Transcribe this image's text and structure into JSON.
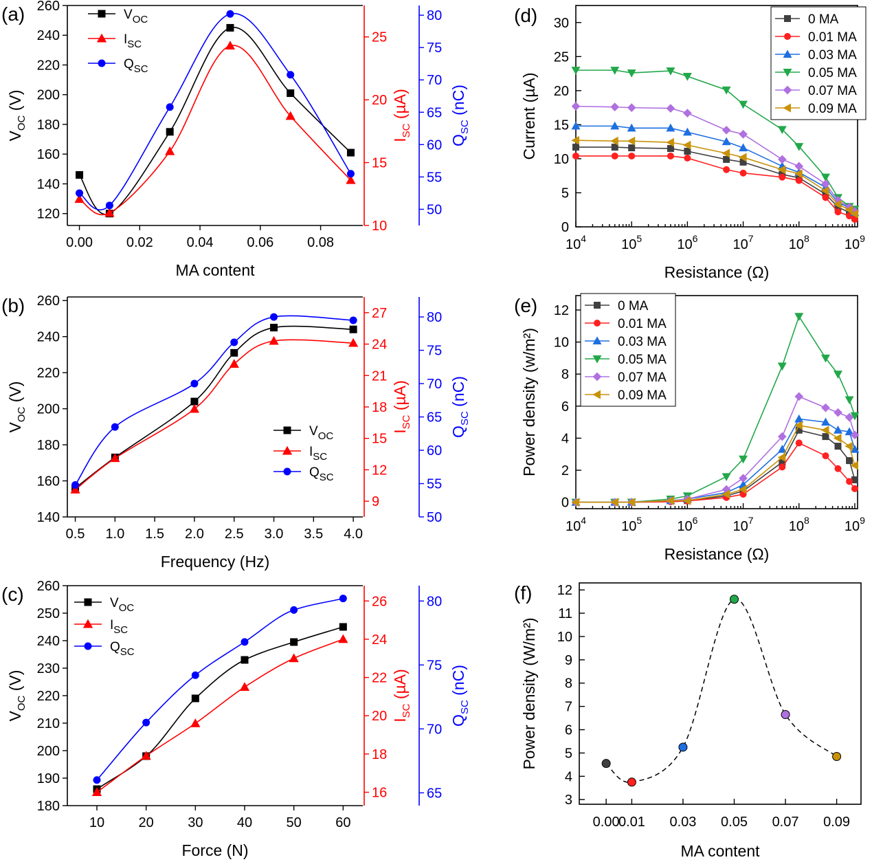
{
  "colors": {
    "voc": "#000000",
    "isc": "#ff0000",
    "qsc": "#0000ff",
    "ma0": "#404040",
    "ma001": "#ff2020",
    "ma003": "#1e6fe0",
    "ma005": "#22a84a",
    "ma007": "#b070e0",
    "ma009": "#c8920a"
  },
  "chart_data": [
    {
      "id": "a",
      "label": "(a)",
      "type": "line",
      "xlabel": "MA content",
      "x": [
        0.0,
        0.01,
        0.03,
        0.05,
        0.07,
        0.09
      ],
      "xticks": [
        0.0,
        0.02,
        0.04,
        0.06,
        0.08
      ],
      "xtick_labels": [
        "0.00",
        "0.02",
        "0.04",
        "0.06",
        "0.08"
      ],
      "xlim": [
        -0.004,
        0.094
      ],
      "axes": [
        {
          "label_main": "V",
          "label_sub": "OC",
          "label_tail": " (V)",
          "lim": [
            112,
            260
          ],
          "ticks": [
            120,
            140,
            160,
            180,
            200,
            220,
            240,
            260
          ],
          "tick_labels": [
            "120",
            "140",
            "160",
            "180",
            "200",
            "220",
            "240",
            "260"
          ]
        },
        {
          "label_main": "I",
          "label_sub": "SC",
          "label_tail": " (µA)",
          "lim": [
            10,
            27.5
          ],
          "ticks": [
            10,
            15,
            20,
            25
          ],
          "tick_labels": [
            "10",
            "15",
            "20",
            "25"
          ]
        },
        {
          "label_main": "Q",
          "label_sub": "SC",
          "label_tail": " (nC)",
          "lim": [
            47.5,
            81.5
          ],
          "ticks": [
            50,
            55,
            60,
            65,
            70,
            75,
            80
          ],
          "tick_labels": [
            "50",
            "55",
            "60",
            "65",
            "70",
            "75",
            "80"
          ]
        }
      ],
      "series": [
        {
          "name": "V",
          "sub": "OC",
          "axis": 0,
          "marker": "square",
          "color_key": "voc",
          "values": [
            146,
            120,
            175,
            245,
            201,
            161
          ]
        },
        {
          "name": "I",
          "sub": "SC",
          "axis": 1,
          "marker": "triangle",
          "color_key": "isc",
          "values": [
            12.1,
            11.0,
            15.9,
            24.3,
            18.7,
            13.6
          ]
        },
        {
          "name": "Q",
          "sub": "SC",
          "axis": 2,
          "marker": "circle",
          "color_key": "qsc",
          "values": [
            52.5,
            50.6,
            65.8,
            80.2,
            70.8,
            55.5
          ]
        }
      ],
      "legend": "top-left"
    },
    {
      "id": "b",
      "label": "(b)",
      "type": "line",
      "xlabel": "Frequency (Hz)",
      "x": [
        0.5,
        1.0,
        2.0,
        2.5,
        3.0,
        4.0
      ],
      "xticks": [
        0.5,
        1.0,
        1.5,
        2.0,
        2.5,
        3.0,
        3.5,
        4.0
      ],
      "xtick_labels": [
        "0.5",
        "1.0",
        "1.5",
        "2.0",
        "2.5",
        "3.0",
        "3.5",
        "4.0"
      ],
      "xlim": [
        0.4,
        4.12
      ],
      "axes": [
        {
          "label_main": "V",
          "label_sub": "OC",
          "label_tail": " (V)",
          "lim": [
            140,
            262
          ],
          "ticks": [
            140,
            160,
            180,
            200,
            220,
            240,
            260
          ],
          "tick_labels": [
            "140",
            "160",
            "180",
            "200",
            "220",
            "240",
            "260"
          ]
        },
        {
          "label_main": "I",
          "label_sub": "SC",
          "label_tail": " (µA)",
          "lim": [
            7.5,
            28.5
          ],
          "ticks": [
            9,
            12,
            15,
            18,
            21,
            24,
            27
          ],
          "tick_labels": [
            "9",
            "12",
            "15",
            "18",
            "21",
            "24",
            "27"
          ]
        },
        {
          "label_main": "Q",
          "label_sub": "SC",
          "label_tail": " (nC)",
          "lim": [
            50,
            83
          ],
          "ticks": [
            50,
            55,
            60,
            65,
            70,
            75,
            80
          ],
          "tick_labels": [
            "50",
            "55",
            "60",
            "65",
            "70",
            "75",
            "80"
          ]
        }
      ],
      "series": [
        {
          "name": "V",
          "sub": "OC",
          "axis": 0,
          "marker": "square",
          "color_key": "voc",
          "values": [
            156,
            173,
            204,
            231,
            245,
            244
          ]
        },
        {
          "name": "I",
          "sub": "SC",
          "axis": 1,
          "marker": "triangle",
          "color_key": "isc",
          "values": [
            10.1,
            13.1,
            17.8,
            22.1,
            24.3,
            24.1
          ]
        },
        {
          "name": "Q",
          "sub": "SC",
          "axis": 2,
          "marker": "circle",
          "color_key": "qsc",
          "values": [
            54.8,
            63.5,
            70.0,
            76.2,
            80.0,
            79.5
          ]
        }
      ],
      "legend": "center-right"
    },
    {
      "id": "c",
      "label": "(c)",
      "type": "line",
      "xlabel": "Force (N)",
      "x": [
        10,
        20,
        30,
        40,
        50,
        60
      ],
      "xticks": [
        10,
        20,
        30,
        40,
        50,
        60
      ],
      "xtick_labels": [
        "10",
        "20",
        "30",
        "40",
        "50",
        "60"
      ],
      "xlim": [
        4,
        64
      ],
      "axes": [
        {
          "label_main": "V",
          "label_sub": "OC",
          "label_tail": " (V)",
          "lim": [
            180,
            260
          ],
          "ticks": [
            180,
            190,
            200,
            210,
            220,
            230,
            240,
            250,
            260
          ],
          "tick_labels": [
            "180",
            "190",
            "200",
            "210",
            "220",
            "230",
            "240",
            "250",
            "260"
          ]
        },
        {
          "label_main": "I",
          "label_sub": "SC",
          "label_tail": " (µA)",
          "lim": [
            15.3,
            26.8
          ],
          "ticks": [
            16,
            18,
            20,
            22,
            24,
            26
          ],
          "tick_labels": [
            "16",
            "18",
            "20",
            "22",
            "24",
            "26"
          ]
        },
        {
          "label_main": "Q",
          "label_sub": "SC",
          "label_tail": " (nC)",
          "lim": [
            64,
            81.2
          ],
          "ticks": [
            65,
            70,
            75,
            80
          ],
          "tick_labels": [
            "65",
            "70",
            "75",
            "80"
          ]
        }
      ],
      "series": [
        {
          "name": "V",
          "sub": "OC",
          "axis": 0,
          "marker": "square",
          "color_key": "voc",
          "values": [
            186,
            198,
            219,
            233,
            239.5,
            245
          ]
        },
        {
          "name": "I",
          "sub": "SC",
          "axis": 1,
          "marker": "triangle",
          "color_key": "isc",
          "values": [
            16.0,
            17.9,
            19.6,
            21.5,
            23.0,
            24.0
          ]
        },
        {
          "name": "Q",
          "sub": "SC",
          "axis": 2,
          "marker": "circle",
          "color_key": "qsc",
          "values": [
            66.0,
            70.5,
            74.2,
            76.8,
            79.3,
            80.2
          ]
        }
      ],
      "legend": "top-left"
    },
    {
      "id": "d",
      "label": "(d)",
      "type": "line",
      "xlabel": "Resistance (Ω)",
      "ylabel": "Current (µA)",
      "xscale": "log",
      "x": [
        10000,
        50000,
        100000,
        500000,
        1000000,
        5000000,
        10000000,
        50000000,
        100000000,
        300000000,
        500000000,
        800000000,
        1000000000
      ],
      "xticks_exp": [
        4,
        5,
        6,
        7,
        8,
        9
      ],
      "xlim_exp": [
        4,
        9.05
      ],
      "ylim": [
        0,
        32.5
      ],
      "yticks": [
        0,
        5,
        10,
        15,
        20,
        25,
        30
      ],
      "ytick_labels": [
        "0",
        "5",
        "10",
        "15",
        "20",
        "25",
        "30"
      ],
      "series": [
        {
          "name": "0 MA",
          "marker": "square",
          "color_key": "ma0",
          "values": [
            11.7,
            11.7,
            11.6,
            11.5,
            11.1,
            9.9,
            9.5,
            7.7,
            7.2,
            4.8,
            2.9,
            2.1,
            1.4
          ]
        },
        {
          "name": "0.01 MA",
          "marker": "circle",
          "color_key": "ma001",
          "values": [
            10.4,
            10.4,
            10.4,
            10.4,
            10.1,
            8.4,
            7.9,
            7.3,
            6.8,
            4.3,
            2.2,
            1.6,
            1.1
          ]
        },
        {
          "name": "0.03 MA",
          "marker": "triangle",
          "color_key": "ma003",
          "values": [
            14.8,
            14.8,
            14.5,
            14.5,
            13.9,
            12.5,
            11.6,
            8.9,
            8.0,
            5.8,
            3.6,
            2.8,
            2.1
          ]
        },
        {
          "name": "0.05 MA",
          "marker": "triangle-down",
          "color_key": "ma005",
          "values": [
            23.0,
            23.0,
            22.6,
            22.9,
            22.1,
            20.1,
            18.0,
            14.3,
            11.8,
            7.3,
            4.3,
            3.0,
            2.6
          ]
        },
        {
          "name": "0.07 MA",
          "marker": "diamond",
          "color_key": "ma007",
          "values": [
            17.7,
            17.6,
            17.5,
            17.4,
            16.7,
            14.2,
            13.6,
            9.9,
            8.9,
            6.3,
            3.9,
            2.9,
            2.3
          ]
        },
        {
          "name": "0.09 MA",
          "marker": "triangle-left",
          "color_key": "ma009",
          "values": [
            12.7,
            12.6,
            12.6,
            12.4,
            12.0,
            10.8,
            10.2,
            8.4,
            7.8,
            5.3,
            3.3,
            2.5,
            1.9
          ]
        }
      ],
      "legend": "top-right"
    },
    {
      "id": "e",
      "label": "(e)",
      "type": "line",
      "xlabel": "Resistance (Ω)",
      "ylabel": "Power density (w/m²)",
      "xscale": "log",
      "x": [
        10000,
        50000,
        100000,
        500000,
        1000000,
        5000000,
        10000000,
        50000000,
        100000000,
        300000000,
        500000000,
        800000000,
        1000000000
      ],
      "xticks_exp": [
        4,
        5,
        6,
        7,
        8,
        9
      ],
      "xlim_exp": [
        4,
        9.05
      ],
      "ylim": [
        -0.4,
        12.9
      ],
      "yticks": [
        0,
        2,
        4,
        6,
        8,
        10,
        12
      ],
      "ytick_labels": [
        "0",
        "2",
        "4",
        "6",
        "8",
        "10",
        "12"
      ],
      "series": [
        {
          "name": "0 MA",
          "marker": "square",
          "color_key": "ma0",
          "values": [
            0.0,
            0.0,
            0.0,
            0.1,
            0.1,
            0.4,
            0.7,
            2.5,
            4.5,
            4.1,
            3.5,
            2.6,
            1.4
          ]
        },
        {
          "name": "0.01 MA",
          "marker": "circle",
          "color_key": "ma001",
          "values": [
            0.0,
            0.0,
            0.0,
            0.03,
            0.08,
            0.3,
            0.5,
            2.2,
            3.7,
            2.9,
            2.1,
            1.3,
            0.85
          ]
        },
        {
          "name": "0.03 MA",
          "marker": "triangle",
          "color_key": "ma003",
          "values": [
            0.0,
            0.0,
            0.0,
            0.1,
            0.2,
            0.6,
            1.1,
            3.3,
            5.2,
            5.0,
            4.5,
            4.4,
            3.3
          ]
        },
        {
          "name": "0.05 MA",
          "marker": "triangle-down",
          "color_key": "ma005",
          "values": [
            0.0,
            0.0,
            0.01,
            0.2,
            0.4,
            1.6,
            2.7,
            8.5,
            11.6,
            9.0,
            8.0,
            6.4,
            5.4
          ]
        },
        {
          "name": "0.07 MA",
          "marker": "diamond",
          "color_key": "ma007",
          "values": [
            0.0,
            0.0,
            0.01,
            0.1,
            0.2,
            0.8,
            1.5,
            4.1,
            6.6,
            5.9,
            5.6,
            5.3,
            4.2
          ]
        },
        {
          "name": "0.09 MA",
          "marker": "triangle-left",
          "color_key": "ma009",
          "values": [
            0.0,
            0.0,
            0.0,
            0.1,
            0.1,
            0.5,
            0.8,
            2.8,
            4.8,
            4.5,
            4.0,
            3.5,
            2.3
          ]
        }
      ],
      "legend": "top-left"
    },
    {
      "id": "f",
      "label": "(f)",
      "type": "scatter",
      "xlabel": "MA content",
      "ylabel": "Power density (W/m²)",
      "x": [
        0.0,
        0.01,
        0.03,
        0.05,
        0.07,
        0.09
      ],
      "xticks": [
        0.0,
        0.01,
        0.03,
        0.05,
        0.07,
        0.09
      ],
      "xtick_labels": [
        "0.00",
        "0.01",
        "0.03",
        "0.05",
        "0.07",
        "0.09"
      ],
      "xlim": [
        -0.0105,
        0.0995
      ],
      "ylim": [
        2.8,
        12.3
      ],
      "yticks": [
        3,
        4,
        5,
        6,
        7,
        8,
        9,
        10,
        11,
        12
      ],
      "ytick_labels": [
        "3",
        "4",
        "5",
        "6",
        "7",
        "8",
        "9",
        "10",
        "11",
        "12"
      ],
      "values": [
        4.55,
        3.75,
        5.25,
        11.6,
        6.65,
        4.85
      ],
      "point_color_keys": [
        "ma0",
        "ma001",
        "ma003",
        "ma005",
        "ma007",
        "ma009"
      ],
      "fit": "dashed smooth curve"
    }
  ]
}
